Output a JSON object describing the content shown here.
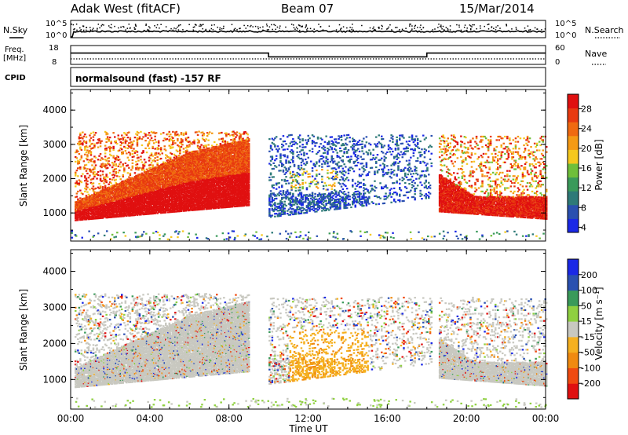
{
  "header": {
    "station": "Adak West (fitACF)",
    "beam": "Beam 07",
    "date": "15/Mar/2014"
  },
  "noise_panel": {
    "left_label": "N.Sky",
    "right_label": "N.Search",
    "tick_top": "10^5",
    "tick_bottom": "10^0"
  },
  "freq_panel": {
    "left_label_1": "Freq.",
    "left_label_2": "[MHz]",
    "right_label": "Nave",
    "left_ticks": [
      "18",
      "8"
    ],
    "right_ticks": [
      "60",
      "0"
    ]
  },
  "cpid_panel": {
    "label": "CPID",
    "program": "normalsound (fast) -157 RF"
  },
  "power_panel": {
    "ylabel": "Slant Range [km]",
    "yticks": [
      "4000",
      "3000",
      "2000",
      "1000"
    ],
    "colorbar_label": "Power [dB]",
    "colorbar_ticks": [
      "28",
      "24",
      "20",
      "16",
      "12",
      "8",
      "4"
    ]
  },
  "velocity_panel": {
    "ylabel": "Slant Range [km]",
    "yticks": [
      "4000",
      "3000",
      "2000",
      "1000"
    ],
    "colorbar_label": "Velocity [m s⁻¹]",
    "colorbar_ticks": [
      "200",
      "100",
      "50",
      "15",
      "-15",
      "-50",
      "-100",
      "-200"
    ]
  },
  "xaxis": {
    "label": "Time UT",
    "ticks": [
      "00:00",
      "04:00",
      "08:00",
      "12:00",
      "16:00",
      "20:00",
      "00:00"
    ]
  },
  "colors": {
    "power_scale": [
      "#1a28e6",
      "#2a50b0",
      "#2e7a78",
      "#3a9a5a",
      "#6fbf3a",
      "#f5c81e",
      "#f59a14",
      "#f06a10",
      "#e83a10",
      "#e01010"
    ],
    "velocity_scale": [
      "#e01010",
      "#f04a10",
      "#f08a10",
      "#f5b020",
      "#c8c8c0",
      "#8fd040",
      "#3a9a5a",
      "#2a50b0",
      "#1a28e6"
    ]
  },
  "chart_data": [
    {
      "type": "line",
      "title": "N.Sky / N.Search",
      "x_range_hours": [
        0,
        24
      ],
      "ylim": [
        "10^0",
        "10^5"
      ],
      "series": [
        {
          "name": "N.Sky",
          "x": [
            0,
            2,
            4,
            6,
            8,
            10,
            12,
            14,
            16,
            18,
            20,
            22,
            24
          ],
          "values": [
            "~10^1",
            "~10^1",
            "~10^1",
            "~10^1",
            "~10^1",
            "~10^1",
            "~10^1",
            "~10^1",
            "~10^1",
            "~10^1",
            "~10^1",
            "~10^1",
            "~10^1"
          ]
        }
      ]
    },
    {
      "type": "line",
      "title": "Freq. [MHz] / Nave",
      "x_range_hours": [
        0,
        24
      ],
      "ylim": [
        8,
        18
      ],
      "series": [
        {
          "name": "Freq.",
          "x": [
            0,
            10,
            10,
            18,
            18,
            24
          ],
          "values": [
            14,
            14,
            12,
            12,
            14,
            14
          ]
        }
      ]
    },
    {
      "type": "heatmap",
      "title": "Power",
      "ylabel": "Slant Range [km]",
      "xlabel": "Time UT",
      "x_range_hours": [
        0,
        24
      ],
      "ylim_km": [
        180,
        4600
      ],
      "colorbar": {
        "label": "Power [dB]",
        "range": [
          0,
          30
        ]
      }
    },
    {
      "type": "heatmap",
      "title": "Velocity",
      "ylabel": "Slant Range [km]",
      "xlabel": "Time UT",
      "x_range_hours": [
        0,
        24
      ],
      "ylim_km": [
        180,
        4600
      ],
      "colorbar": {
        "label": "Velocity [m s⁻¹]",
        "range": [
          -250,
          250
        ]
      }
    }
  ]
}
